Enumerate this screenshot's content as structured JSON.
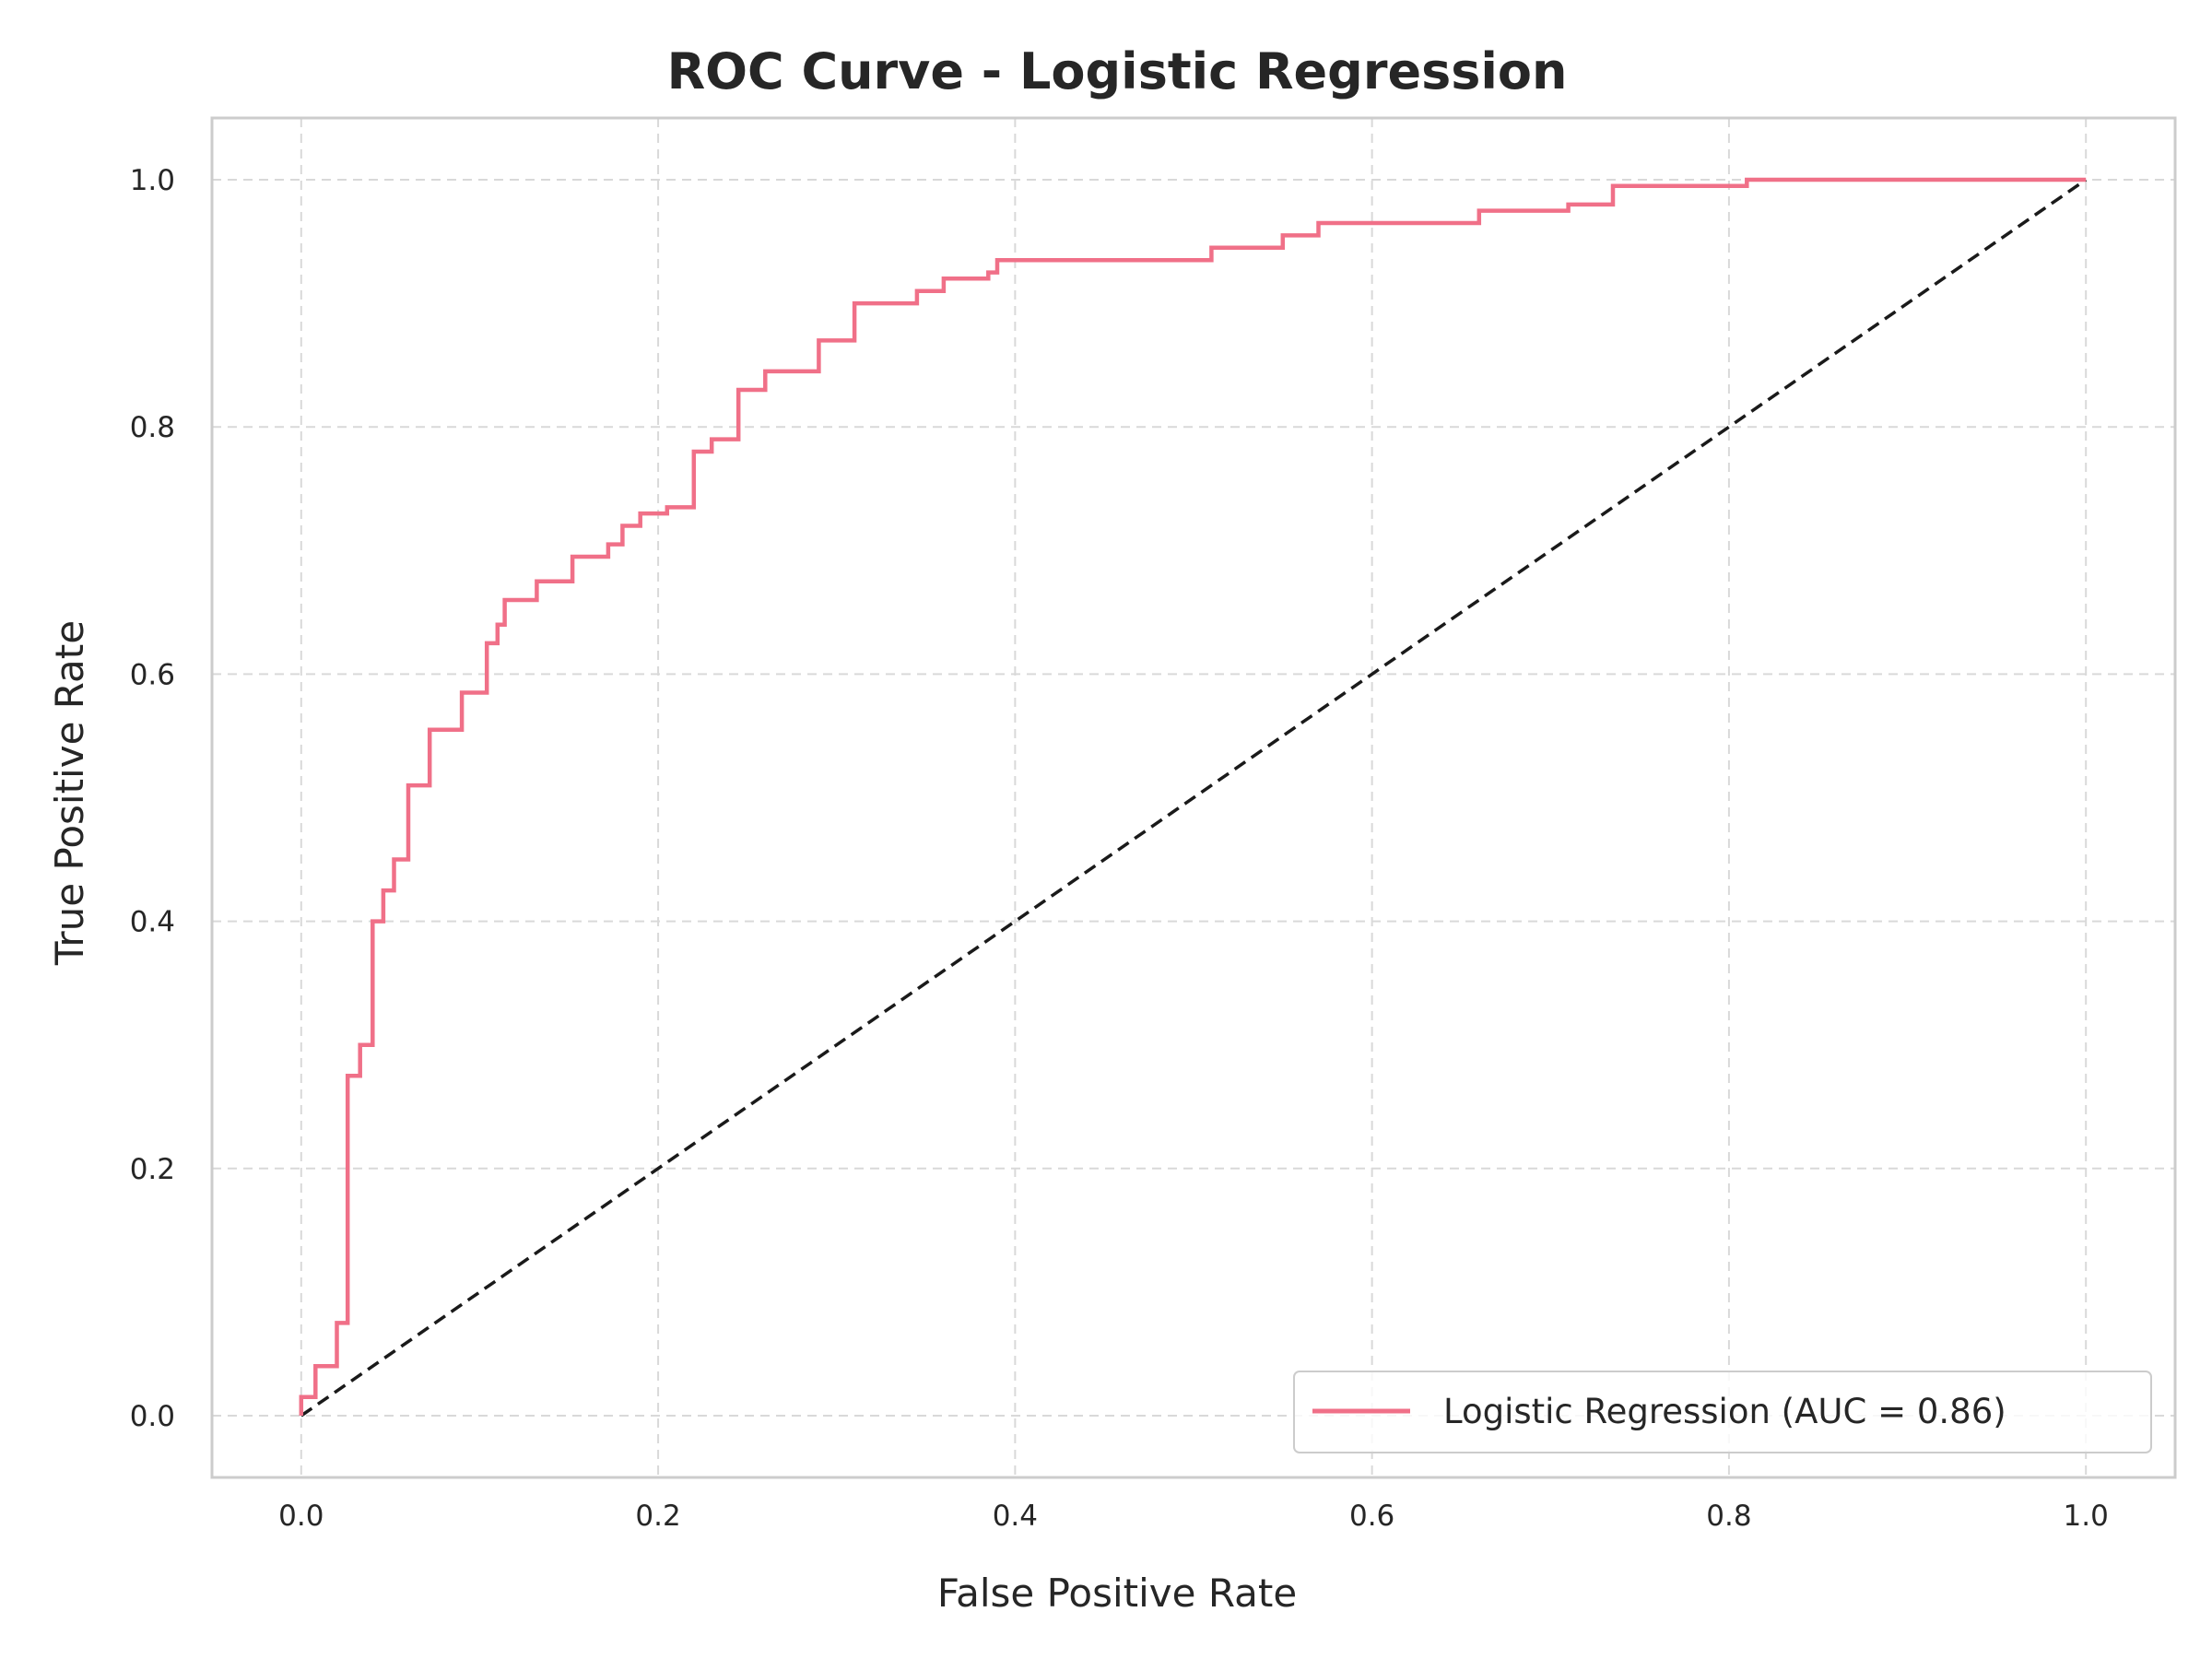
{
  "chart_data": {
    "type": "line",
    "title": "ROC Curve - Logistic Regression",
    "xlabel": "False Positive Rate",
    "ylabel": "True Positive Rate",
    "xlim": [
      -0.05,
      1.05
    ],
    "ylim": [
      -0.05,
      1.05
    ],
    "xticks": [
      0.0,
      0.2,
      0.4,
      0.6,
      0.8,
      1.0
    ],
    "yticks": [
      0.0,
      0.2,
      0.4,
      0.6,
      0.8,
      1.0
    ],
    "x_tick_labels": [
      "0.0",
      "0.2",
      "0.4",
      "0.6",
      "0.8",
      "1.0"
    ],
    "y_tick_labels": [
      "0.0",
      "0.2",
      "0.4",
      "0.6",
      "0.8",
      "1.0"
    ],
    "grid": true,
    "legend_position": "lower-right",
    "series": [
      {
        "name": "Logistic Regression (AUC = 0.86)",
        "color": "#f07088",
        "style": "solid",
        "step": true,
        "x": [
          0.0,
          0.0,
          0.008,
          0.008,
          0.02,
          0.02,
          0.026,
          0.026,
          0.033,
          0.033,
          0.04,
          0.04,
          0.046,
          0.046,
          0.052,
          0.052,
          0.06,
          0.06,
          0.072,
          0.072,
          0.09,
          0.09,
          0.104,
          0.104,
          0.11,
          0.11,
          0.114,
          0.114,
          0.122,
          0.122,
          0.132,
          0.132,
          0.152,
          0.152,
          0.172,
          0.172,
          0.18,
          0.18,
          0.19,
          0.19,
          0.205,
          0.205,
          0.22,
          0.22,
          0.23,
          0.23,
          0.245,
          0.245,
          0.26,
          0.26,
          0.29,
          0.29,
          0.31,
          0.31,
          0.345,
          0.345,
          0.36,
          0.36,
          0.385,
          0.385,
          0.39,
          0.39,
          0.51,
          0.51,
          0.55,
          0.55,
          0.57,
          0.57,
          0.66,
          0.66,
          0.71,
          0.71,
          0.735,
          0.735,
          0.81,
          0.81,
          1.0
        ],
        "y": [
          0.0,
          0.015,
          0.015,
          0.04,
          0.04,
          0.075,
          0.075,
          0.275,
          0.275,
          0.3,
          0.3,
          0.4,
          0.4,
          0.425,
          0.425,
          0.45,
          0.45,
          0.51,
          0.51,
          0.555,
          0.555,
          0.585,
          0.585,
          0.625,
          0.625,
          0.64,
          0.64,
          0.66,
          0.66,
          0.66,
          0.66,
          0.675,
          0.675,
          0.695,
          0.695,
          0.705,
          0.705,
          0.72,
          0.72,
          0.73,
          0.73,
          0.735,
          0.735,
          0.78,
          0.78,
          0.79,
          0.79,
          0.83,
          0.83,
          0.845,
          0.845,
          0.87,
          0.87,
          0.9,
          0.9,
          0.91,
          0.91,
          0.92,
          0.92,
          0.925,
          0.925,
          0.935,
          0.935,
          0.945,
          0.945,
          0.955,
          0.955,
          0.965,
          0.965,
          0.975,
          0.975,
          0.98,
          0.98,
          0.995,
          0.995,
          1.0,
          1.0
        ]
      },
      {
        "name": "",
        "color": "#1a1a1a",
        "style": "dashed",
        "step": false,
        "x": [
          0.0,
          1.0
        ],
        "y": [
          0.0,
          1.0
        ]
      }
    ]
  },
  "colors": {
    "grid": "#d9d9d9",
    "spine": "#cccccc",
    "background": "#ffffff"
  }
}
